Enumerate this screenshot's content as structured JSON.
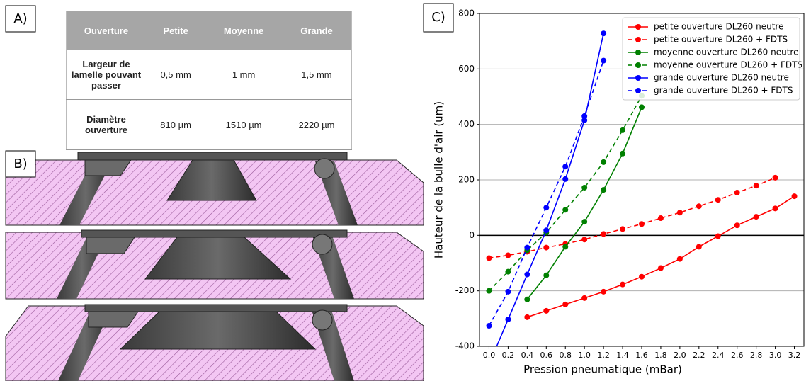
{
  "panel_labels": [
    "A)",
    "B)",
    "C)"
  ],
  "table": {
    "header": [
      "Ouverture",
      "Petite",
      "Moyenne",
      "Grande"
    ],
    "rows": [
      [
        "Largeur de lamelle pouvant passer",
        "0,5 mm",
        "1 mm",
        "1,5 mm"
      ],
      [
        "Diamètre ouverture",
        "810 µm",
        "1510 µm",
        "2220 µm"
      ]
    ]
  },
  "chart_data": {
    "type": "line",
    "x_label": "Pression pneumatique (mBar)",
    "y_label": "Hauteur de la bulle d'air (um)",
    "xlim": [
      -0.1,
      3.3
    ],
    "xticks": [
      {
        "value": 0,
        "label": "0.0"
      },
      0.2,
      0.4,
      0.6,
      0.8,
      {
        "value": 1,
        "label": "1.0"
      },
      1.2,
      1.4,
      1.6,
      1.8,
      {
        "value": 2,
        "label": "2.0"
      },
      2.2,
      2.4,
      2.6,
      2.8,
      {
        "value": 3,
        "label": "3.0"
      },
      3.2
    ],
    "ylim": [
      -400,
      800
    ],
    "yticks": [
      -400,
      -200,
      0,
      200,
      400,
      600,
      800
    ],
    "grid": true,
    "zero_line": true,
    "legend": "upper right",
    "series": [
      {
        "name": "petite ouverture DL260 neutre",
        "color": "#ff0000",
        "line_style": "solid",
        "x": [
          0.4,
          0.6,
          0.8,
          1.0,
          1.2,
          1.4,
          1.6,
          1.8,
          2.0,
          2.2,
          2.4,
          2.6,
          2.8,
          3.0,
          3.2
        ],
        "values": [
          -295,
          -272,
          -249,
          -226,
          -203,
          -177,
          -149,
          -118,
          -85,
          -41,
          -3,
          36,
          67,
          97,
          141
        ]
      },
      {
        "name": "petite ouverture DL260 + FDTS",
        "color": "#ff0000",
        "line_style": "dashed",
        "x": [
          0.0,
          0.2,
          0.4,
          0.6,
          0.8,
          1.0,
          1.2,
          1.4,
          1.6,
          1.8,
          2.0,
          2.2,
          2.4,
          2.6,
          2.8,
          3.0
        ],
        "values": [
          -82,
          -72,
          -59,
          -44,
          -31,
          -15,
          5,
          23,
          41,
          62,
          82,
          105,
          128,
          154,
          179,
          208
        ]
      },
      {
        "name": "moyenne ouverture DL260 neutre",
        "color": "#008000",
        "line_style": "solid",
        "x": [
          0.4,
          0.6,
          0.8,
          1.0,
          1.2,
          1.4,
          1.6
        ],
        "values": [
          -231,
          -144,
          -41,
          49,
          164,
          295,
          462
        ]
      },
      {
        "name": "moyenne ouverture DL260 + FDTS",
        "color": "#008000",
        "line_style": "dashed",
        "x": [
          0.0,
          0.2,
          0.4,
          0.6,
          0.8,
          1.0,
          1.2,
          1.4,
          1.6
        ],
        "values": [
          -200,
          -131,
          -54,
          10,
          92,
          172,
          264,
          379,
          503
        ]
      },
      {
        "name": "grande ouverture DL260 neutre",
        "color": "#0000ff",
        "line_style": "solid",
        "x": [
          0.0,
          0.2,
          0.4,
          0.6,
          0.8,
          1.0,
          1.2
        ],
        "values": [
          -465,
          -303,
          -141,
          18,
          203,
          415,
          728
        ]
      },
      {
        "name": "grande ouverture DL260 + FDTS",
        "color": "#0000ff",
        "line_style": "dashed",
        "x": [
          0.0,
          0.2,
          0.4,
          0.6,
          0.8,
          1.0,
          1.2
        ],
        "values": [
          -326,
          -203,
          -44,
          100,
          248,
          430,
          630
        ]
      }
    ]
  }
}
